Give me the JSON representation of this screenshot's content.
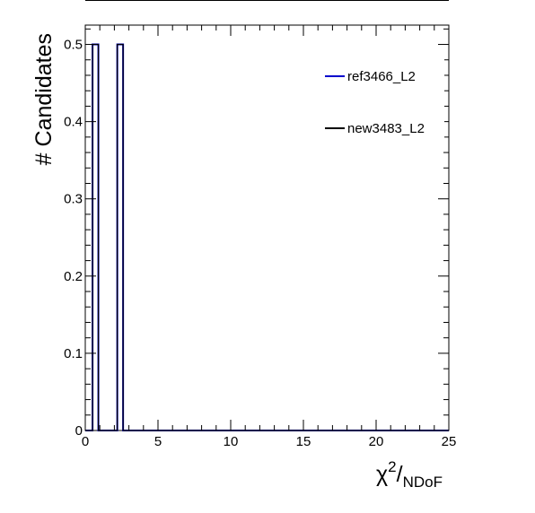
{
  "chart_data": {
    "type": "histogram",
    "title": "",
    "xlabel": {
      "symbol": "χ",
      "superscript": "2",
      "slash": "/",
      "subscript": "NDoF"
    },
    "ylabel": "# Candidates",
    "xlim": [
      0,
      25
    ],
    "ylim": [
      0,
      0.525
    ],
    "x_major_ticks": [
      0,
      5,
      10,
      15,
      20,
      25
    ],
    "x_tick_labels": [
      "0",
      "5",
      "10",
      "15",
      "20",
      "25"
    ],
    "x_minor_step": 1,
    "y_major_ticks": [
      0,
      0.1,
      0.2,
      0.3,
      0.4,
      0.5
    ],
    "y_tick_labels": [
      "0",
      "0.1",
      "0.2",
      "0.3",
      "0.4",
      "0.5"
    ],
    "y_minor_step": 0.02,
    "grid": false,
    "legend_position": "top-right",
    "series": [
      {
        "name": "ref3466_L2",
        "color": "#0000cc",
        "bins": [
          {
            "x0": 0.5,
            "x1": 0.9,
            "y": 0.5
          },
          {
            "x0": 2.2,
            "x1": 2.6,
            "y": 0.5
          }
        ]
      },
      {
        "name": "new3483_L2",
        "color": "#000000",
        "bins": [
          {
            "x0": 0.5,
            "x1": 0.9,
            "y": 0.5
          },
          {
            "x0": 2.2,
            "x1": 2.6,
            "y": 0.5
          }
        ]
      }
    ]
  }
}
